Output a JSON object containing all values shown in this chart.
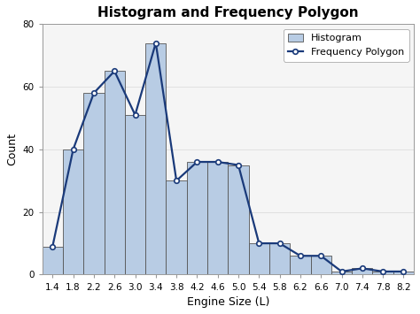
{
  "title": "Histogram and Frequency Polygon",
  "xlabel": "Engine Size (L)",
  "ylabel": "Count",
  "midpoints": [
    1.4,
    1.8,
    2.2,
    2.6,
    3.0,
    3.4,
    3.8,
    4.2,
    4.6,
    5.0,
    5.4,
    5.8,
    6.2,
    6.6,
    7.0,
    7.4,
    7.8,
    8.2
  ],
  "counts": [
    9,
    40,
    58,
    65,
    51,
    74,
    30,
    36,
    36,
    35,
    10,
    10,
    6,
    6,
    1,
    2,
    1,
    1
  ],
  "bin_width": 0.4,
  "bar_facecolor": "#b8cce4",
  "bar_edgecolor": "#555555",
  "line_color": "#1a3a7a",
  "line_marker": "o",
  "line_width": 1.6,
  "marker_size": 4,
  "ylim": [
    0,
    80
  ],
  "yticks": [
    0,
    20,
    40,
    60,
    80
  ],
  "xticks": [
    1.4,
    1.8,
    2.2,
    2.6,
    3.0,
    3.4,
    3.8,
    4.2,
    4.6,
    5.0,
    5.4,
    5.8,
    6.2,
    6.6,
    7.0,
    7.4,
    7.8,
    8.2
  ],
  "grid_color": "#dddddd",
  "background_color": "#ffffff",
  "plot_bg_color": "#f5f5f5",
  "title_fontsize": 11,
  "axis_label_fontsize": 9,
  "tick_fontsize": 7.5,
  "legend_fontsize": 8
}
